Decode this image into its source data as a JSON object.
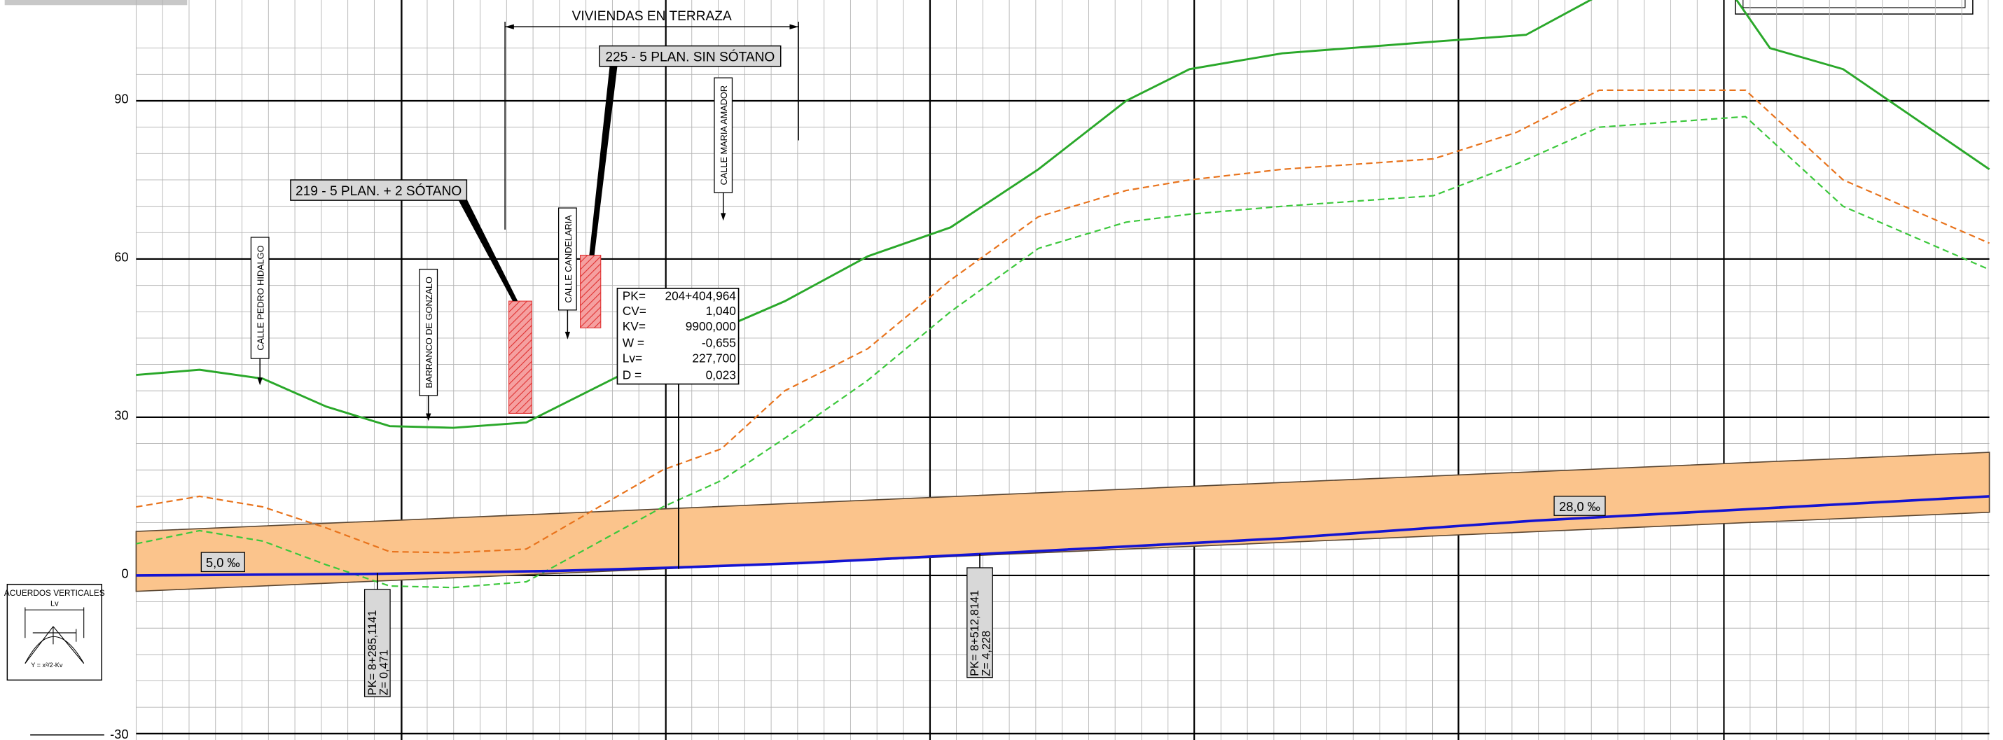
{
  "colors": {
    "terrain": "#2aa82a",
    "orange_dash": "#e8731c",
    "green_dash": "#3cc83c",
    "rasante": "#1414d2",
    "band_fill": "#fbc48c",
    "band_edge": "#5a4632",
    "building_fill": "#f5a0a0",
    "building_hatch": "#e03030",
    "grid_major": "#000000",
    "grid_minor": "#b4b4b4"
  },
  "chart_data": {
    "type": "line",
    "ylim": [
      -30,
      105
    ],
    "yticks": [
      "90",
      "60",
      "30",
      "0",
      "-30"
    ],
    "series": [
      {
        "key": "terrain",
        "style": "solid",
        "x": [
          0,
          26,
          52,
          78,
          104,
          130,
          160,
          216,
          266,
          300,
          334,
          370,
          406,
          432,
          470,
          532,
          570,
          600,
          640,
          670,
          700,
          760
        ],
        "y": [
          38,
          39,
          37.3,
          32,
          28.3,
          28,
          29,
          42,
          52,
          60.5,
          66,
          77,
          90,
          96,
          99,
          101.2,
          102.5,
          110,
          120,
          100,
          96,
          77
        ]
      },
      {
        "key": "orange_dash",
        "style": "dashed",
        "x": [
          0,
          26,
          52,
          78,
          104,
          130,
          160,
          216,
          240,
          266,
          300,
          334,
          370,
          406,
          432,
          470,
          532,
          566,
          600,
          660,
          700,
          760
        ],
        "y": [
          13,
          15,
          13,
          9,
          4.5,
          4.3,
          5,
          20,
          24,
          35,
          43,
          56,
          68,
          73,
          75,
          77,
          79,
          84,
          92,
          92,
          75,
          63
        ]
      },
      {
        "key": "green_dash",
        "style": "dashed",
        "x": [
          0,
          26,
          52,
          78,
          104,
          130,
          160,
          216,
          240,
          266,
          300,
          334,
          370,
          406,
          432,
          470,
          532,
          566,
          600,
          660,
          700,
          760
        ],
        "y": [
          6,
          8.5,
          6.5,
          2,
          -2,
          -2.3,
          -1.2,
          13,
          18,
          26,
          37,
          50,
          62,
          67,
          68.5,
          70,
          72,
          78,
          85,
          87,
          70,
          58
        ]
      }
    ]
  },
  "labels": {
    "section_title": "VIVIENDAS EN TERRAZA",
    "bldg_219": "219 - 5 PLAN. + 2 SÓTANO",
    "bldg_225": "225 - 5 PLAN. SIN SÓTANO",
    "streets": {
      "pedro_hidalgo": "CALLE PEDRO HIDALGO",
      "barranco_gonzalo": "BARRANCO DE GONZALO",
      "candelaria": "CALLE CANDELARIA",
      "maria_amador": "CALLE MARIA AMADOR"
    },
    "slope_left": "5,0 ‰",
    "slope_right": "28,0 ‰"
  },
  "curve_box": {
    "pk_key": "PK=",
    "pk_val": "204+404,964",
    "cv_key": "CV=",
    "cv_val": "1,040",
    "kv_key": "KV=",
    "kv_val": "9900,000",
    "w_key": "W =",
    "w_val": "-0,655",
    "lv_key": "Lv=",
    "lv_val": "227,700",
    "d_key": "D =",
    "d_val": "0,023"
  },
  "stations": {
    "s1_pk": "PK= 8+285,1141",
    "s1_z": "Z= 0,471",
    "s2_pk": "PK= 8+512,8141",
    "s2_z": "Z= 4,228"
  },
  "legend": {
    "title": "ACUERDOS VERTICALES",
    "lv": "Lv",
    "formula": "Y = x²/2·Kv"
  }
}
